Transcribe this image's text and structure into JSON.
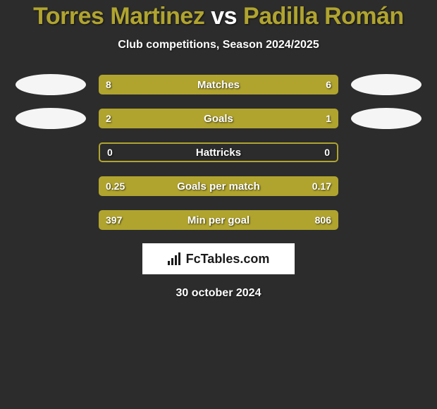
{
  "title": {
    "parts": [
      {
        "text": "Torres Martinez",
        "color": "#b0a42f"
      },
      {
        "text": " vs ",
        "color": "#ffffff"
      },
      {
        "text": "Padilla Román",
        "color": "#b0a42f"
      }
    ]
  },
  "subtitle": "Club competitions, Season 2024/2025",
  "colors": {
    "bar": "#b0a42f",
    "background": "#2c2c2c",
    "text": "#ffffff",
    "ellipse": "#f5f5f5"
  },
  "ellipses_left": [
    true,
    true,
    false,
    false,
    false
  ],
  "ellipses_right": [
    true,
    true,
    false,
    false,
    false
  ],
  "stats": [
    {
      "label": "Matches",
      "left_val": "8",
      "right_val": "6",
      "left_pct": 57,
      "right_pct": 43,
      "outlined": false
    },
    {
      "label": "Goals",
      "left_val": "2",
      "right_val": "1",
      "left_pct": 67,
      "right_pct": 33,
      "outlined": false
    },
    {
      "label": "Hattricks",
      "left_val": "0",
      "right_val": "0",
      "left_pct": 0,
      "right_pct": 0,
      "outlined": true
    },
    {
      "label": "Goals per match",
      "left_val": "0.25",
      "right_val": "0.17",
      "left_pct": 60,
      "right_pct": 40,
      "outlined": false
    },
    {
      "label": "Min per goal",
      "left_val": "397",
      "right_val": "806",
      "left_pct": 33,
      "right_pct": 67,
      "outlined": false
    }
  ],
  "logo_text": "FcTables.com",
  "date": "30 october 2024"
}
